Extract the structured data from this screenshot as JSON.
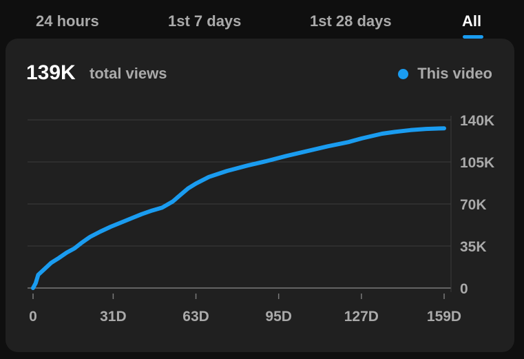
{
  "tabs": [
    {
      "label": "24 hours",
      "active": false
    },
    {
      "label": "1st 7 days",
      "active": false
    },
    {
      "label": "1st 28 days",
      "active": false
    },
    {
      "label": "All",
      "active": true
    }
  ],
  "summary": {
    "value": "139K",
    "label": "total views"
  },
  "legend": {
    "label": "This video",
    "color": "#1a9cf0"
  },
  "chart_data": {
    "type": "line",
    "x_tick_labels": [
      "0",
      "31D",
      "63D",
      "95D",
      "127D",
      "159D"
    ],
    "y_tick_labels": [
      "0",
      "35K",
      "70K",
      "105K",
      "140K"
    ],
    "x_ticks": [
      0,
      31,
      63,
      95,
      127,
      159
    ],
    "y_ticks": [
      0,
      35000,
      70000,
      105000,
      140000
    ],
    "xlim": [
      0,
      159
    ],
    "ylim": [
      0,
      140000
    ],
    "grid": true,
    "series": [
      {
        "name": "This video",
        "color": "#1a9cf0",
        "x": [
          0,
          1,
          2,
          4,
          7,
          10,
          13,
          16,
          19,
          22,
          26,
          30,
          34,
          38,
          42,
          46,
          50,
          54,
          57,
          60,
          63,
          68,
          75,
          83,
          90,
          98,
          106,
          114,
          122,
          127,
          135,
          140,
          146,
          152,
          159
        ],
        "y": [
          0,
          4000,
          11000,
          15000,
          21000,
          25000,
          29500,
          33000,
          38000,
          42500,
          47000,
          51000,
          54500,
          58000,
          61500,
          64500,
          67000,
          72000,
          77500,
          83000,
          87000,
          92500,
          97500,
          102000,
          105500,
          110000,
          114000,
          118000,
          121500,
          124500,
          128500,
          130000,
          131500,
          132500,
          133000
        ]
      }
    ]
  }
}
